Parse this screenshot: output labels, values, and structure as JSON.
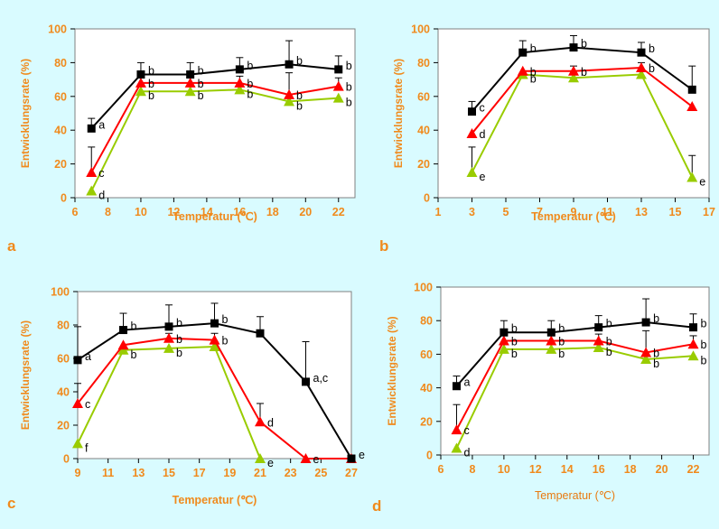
{
  "colors": {
    "background": "#d9fbff",
    "axis_text": "#f08a1c",
    "black_series": "#000000",
    "red_series": "#ff0000",
    "green_series": "#99cc00"
  },
  "chart_data": [
    {
      "panel": "a",
      "type": "line",
      "ylabel": "Entwicklungsrate (%)",
      "xlabel": "Temperatur (℃)",
      "xlim": [
        6,
        23
      ],
      "ylim": [
        0,
        100
      ],
      "xticks": [
        6,
        8,
        10,
        12,
        14,
        16,
        18,
        20,
        22
      ],
      "yticks": [
        0,
        20,
        40,
        60,
        80,
        100
      ],
      "x": [
        7,
        10,
        13,
        16,
        19,
        22
      ],
      "series": [
        {
          "color": "black",
          "values": [
            41,
            73,
            73,
            76,
            79,
            76
          ],
          "error": [
            6,
            7,
            7,
            7,
            14,
            8
          ],
          "letters": [
            "a",
            "b",
            "b",
            "b",
            "b",
            "b"
          ]
        },
        {
          "color": "red",
          "values": [
            15,
            68,
            68,
            68,
            61,
            66
          ],
          "error": [
            15,
            3,
            4,
            4,
            13,
            5
          ],
          "letters": [
            "c",
            "b",
            "b",
            "b",
            "b",
            "b"
          ]
        },
        {
          "color": "green",
          "values": [
            4,
            63,
            63,
            64,
            57,
            59
          ],
          "error": [
            0,
            0,
            0,
            0,
            0,
            0
          ],
          "letters": [
            "d",
            "b",
            "b",
            "b",
            "b",
            "b"
          ]
        }
      ]
    },
    {
      "panel": "b",
      "type": "line",
      "ylabel": "Entwicklungsrate (%)",
      "xlabel": "Temperatur (℃)",
      "xlim": [
        1,
        17
      ],
      "ylim": [
        0,
        100
      ],
      "xticks": [
        1,
        3,
        5,
        7,
        9,
        11,
        13,
        15,
        17
      ],
      "yticks": [
        0,
        20,
        40,
        60,
        80,
        100
      ],
      "x": [
        3,
        6,
        9,
        13,
        16
      ],
      "series": [
        {
          "color": "black",
          "values": [
            51,
            86,
            89,
            86,
            64
          ],
          "error": [
            6,
            7,
            7,
            6,
            14
          ],
          "letters": [
            "c",
            "b",
            "b",
            "b",
            ""
          ]
        },
        {
          "color": "red",
          "values": [
            38,
            75,
            75,
            77,
            54
          ],
          "error": [
            0,
            0,
            3,
            3,
            0
          ],
          "letters": [
            "d",
            "b",
            "b",
            "b",
            ""
          ]
        },
        {
          "color": "green",
          "values": [
            15,
            73,
            71,
            73,
            12
          ],
          "error": [
            15,
            0,
            0,
            0,
            13
          ],
          "letters": [
            "e",
            "b",
            "",
            "",
            "e"
          ]
        }
      ]
    },
    {
      "panel": "c",
      "type": "line",
      "ylabel": "Entwicklungsrate (%)",
      "xlabel": "Temperatur (℃)",
      "xlim": [
        9,
        27
      ],
      "ylim": [
        0,
        100
      ],
      "xticks": [
        9,
        11,
        13,
        15,
        17,
        19,
        21,
        23,
        25,
        27
      ],
      "yticks": [
        0,
        20,
        40,
        60,
        80,
        100
      ],
      "x": [
        9,
        12,
        15,
        18,
        21,
        24,
        27
      ],
      "series": [
        {
          "color": "black",
          "values": [
            59,
            77,
            79,
            81,
            75,
            46,
            0
          ],
          "error": [
            20,
            10,
            13,
            12,
            10,
            24,
            0
          ],
          "letters": [
            "a",
            "b",
            "b",
            "b",
            "",
            "a,c",
            "e"
          ]
        },
        {
          "color": "red",
          "values": [
            33,
            68,
            72,
            71,
            22,
            0,
            0
          ],
          "error": [
            12,
            0,
            3,
            4,
            11,
            0,
            0
          ],
          "letters": [
            "c",
            "",
            "b",
            "b",
            "d",
            "e",
            ""
          ]
        },
        {
          "color": "green",
          "values": [
            9,
            65,
            66,
            67,
            0,
            null,
            null
          ],
          "error": [
            0,
            0,
            0,
            0,
            0,
            0,
            0
          ],
          "letters": [
            "f",
            "b",
            "b",
            "",
            "e",
            "",
            ""
          ]
        }
      ]
    },
    {
      "panel": "d",
      "type": "line",
      "ylabel": "Entwicklungsrate (%)",
      "xlabel": "Temperatur (℃)",
      "xlim": [
        6,
        23
      ],
      "ylim": [
        0,
        100
      ],
      "xticks": [
        6,
        8,
        10,
        12,
        14,
        16,
        18,
        20,
        22
      ],
      "yticks": [
        0,
        20,
        40,
        60,
        80,
        100
      ],
      "x": [
        7,
        10,
        13,
        16,
        19,
        22
      ],
      "series": [
        {
          "color": "black",
          "values": [
            41,
            73,
            73,
            76,
            79,
            76
          ],
          "error": [
            6,
            7,
            7,
            7,
            14,
            8
          ],
          "letters": [
            "a",
            "b",
            "b",
            "b",
            "b",
            "b"
          ]
        },
        {
          "color": "red",
          "values": [
            15,
            68,
            68,
            68,
            61,
            66
          ],
          "error": [
            15,
            3,
            4,
            4,
            13,
            5
          ],
          "letters": [
            "c",
            "b",
            "b",
            "b",
            "b",
            "b"
          ]
        },
        {
          "color": "green",
          "values": [
            4,
            63,
            63,
            64,
            57,
            59
          ],
          "error": [
            0,
            0,
            0,
            0,
            0,
            0
          ],
          "letters": [
            "d",
            "b",
            "b",
            "b",
            "b",
            "b"
          ]
        }
      ]
    }
  ]
}
